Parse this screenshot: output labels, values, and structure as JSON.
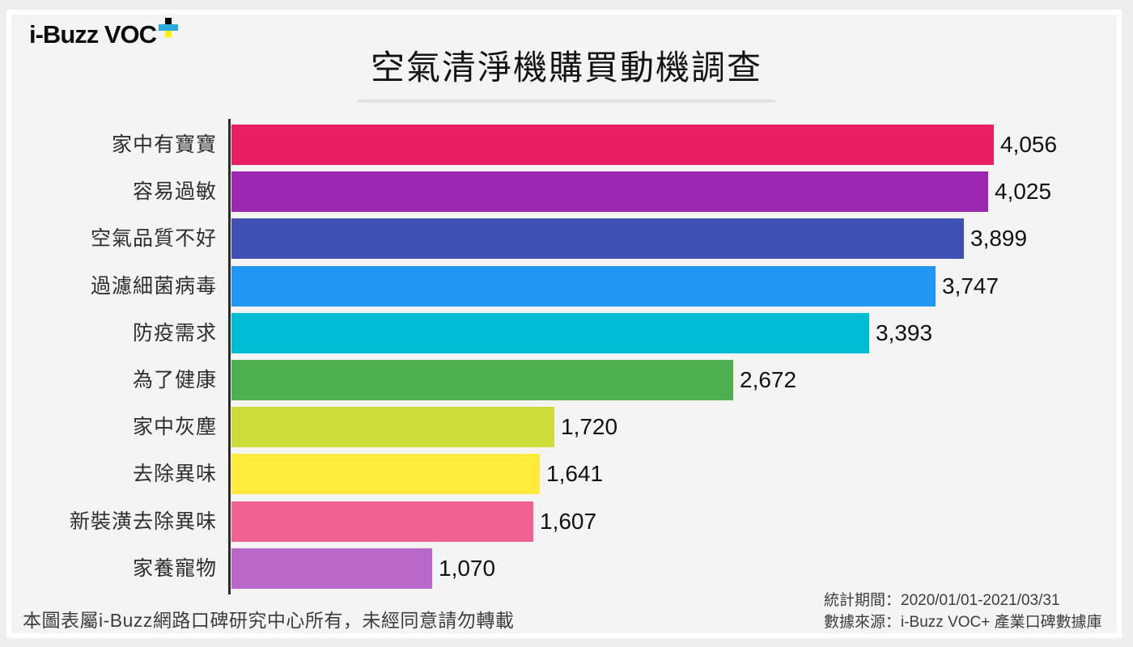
{
  "logo": {
    "text": "i-Buzz VOC",
    "plus_icon_colors": {
      "top": "#000000",
      "left": "#29abe2",
      "mid": "#29abe2",
      "right": "#29abe2",
      "bottom": "#fff200"
    }
  },
  "title": "空氣清淨機購買動機調查",
  "chart_data": {
    "type": "bar",
    "orientation": "horizontal",
    "title": "空氣清淨機購買動機調查",
    "xlabel": "",
    "ylabel": "",
    "categories": [
      "家中有寶寶",
      "容易過敏",
      "空氣品質不好",
      "過濾細菌病毒",
      "防疫需求",
      "為了健康",
      "家中灰塵",
      "去除異味",
      "新裝潢去除異味",
      "家養寵物"
    ],
    "values": [
      4056,
      4025,
      3899,
      3747,
      3393,
      2672,
      1720,
      1641,
      1607,
      1070
    ],
    "value_labels": [
      "4,056",
      "4,025",
      "3,899",
      "3,747",
      "3,393",
      "2,672",
      "1,720",
      "1,641",
      "1,607",
      "1,070"
    ],
    "colors": [
      "#E91E63",
      "#9C27B0",
      "#3F51B5",
      "#2196F3",
      "#00BCD4",
      "#4CAF50",
      "#CDDC39",
      "#FFEB3B",
      "#F06292",
      "#BA68C8"
    ],
    "xlim": [
      0,
      4740
    ],
    "grid": false,
    "legend": false,
    "value_label_position": "end-of-bar",
    "axis_line_color": "#2b2b2b"
  },
  "footer": {
    "copyright": "本圖表屬i-Buzz網路口碑研究中心所有，未經同意請勿轉載",
    "period": "統計期間：2020/01/01-2021/03/31",
    "source": "數據來源：i-Buzz VOC+ 產業口碑數據庫"
  }
}
